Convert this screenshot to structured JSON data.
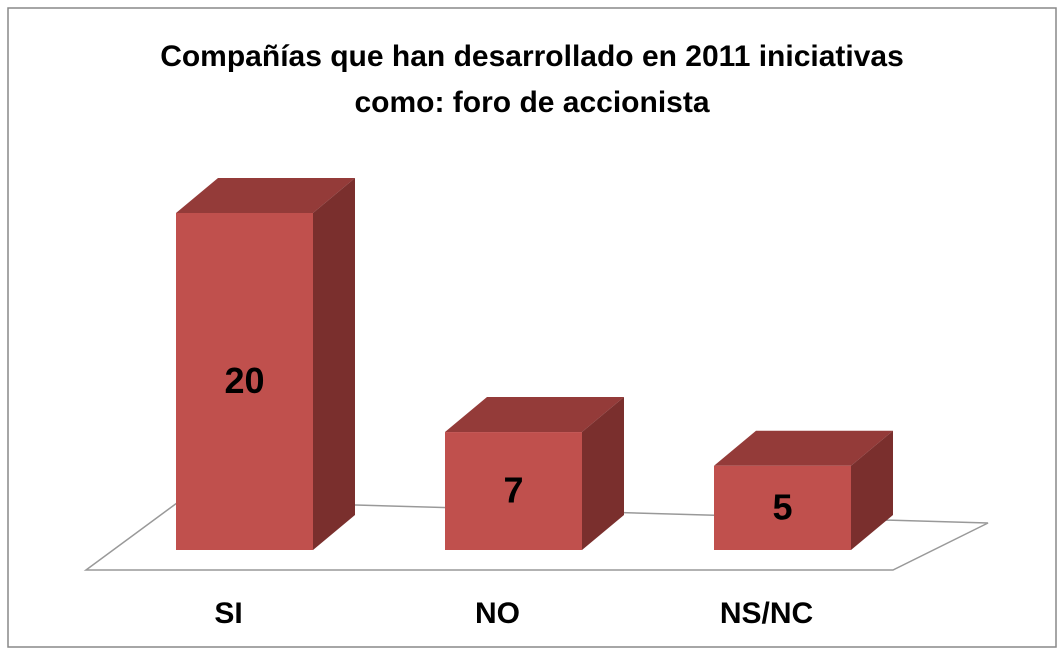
{
  "chart_data": {
    "type": "bar3d",
    "title": "Compañías que han desarrollado en 2011 iniciativas como: foro de accionista",
    "categories": [
      "SI",
      "NO",
      "NS/NC"
    ],
    "values": [
      20,
      7,
      5
    ],
    "color": "#c0504d"
  }
}
